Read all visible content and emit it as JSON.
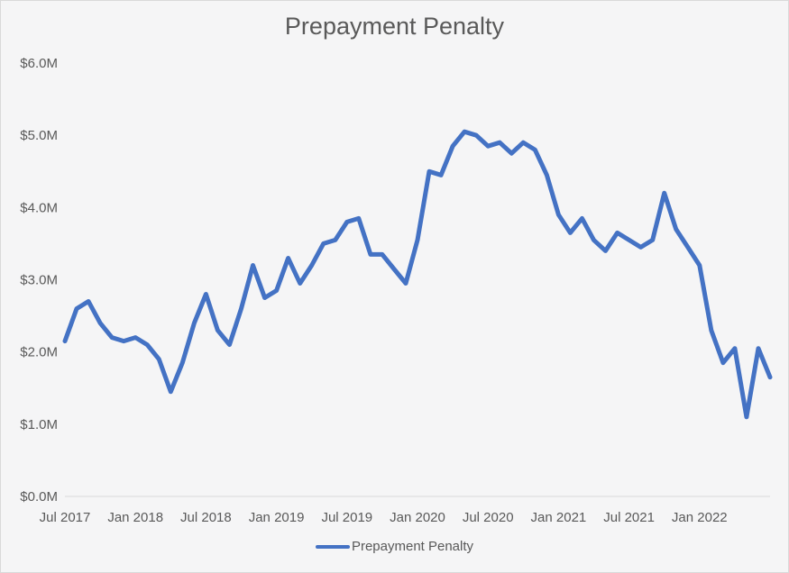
{
  "chart_data": {
    "type": "line",
    "title": "Prepayment Penalty",
    "xlabel": "",
    "ylabel": "",
    "ylim": [
      0,
      6.0
    ],
    "y_ticks": [
      "$0.0M",
      "$1.0M",
      "$2.0M",
      "$3.0M",
      "$4.0M",
      "$5.0M",
      "$6.0M"
    ],
    "x_ticks": [
      "Jul 2017",
      "Jan 2018",
      "Jul 2018",
      "Jan 2019",
      "Jul 2019",
      "Jan 2020",
      "Jul 2020",
      "Jan 2021",
      "Jul 2021",
      "Jan 2022"
    ],
    "grid": false,
    "legend": "bottom",
    "colors": {
      "line": "#4472c4",
      "axis": "#d9d9d9",
      "text": "#595959",
      "background": "#f5f5f6"
    },
    "series": [
      {
        "name": "Prepayment Penalty",
        "x": [
          "2017-07",
          "2017-08",
          "2017-09",
          "2017-10",
          "2017-11",
          "2017-12",
          "2018-01",
          "2018-02",
          "2018-03",
          "2018-04",
          "2018-05",
          "2018-06",
          "2018-07",
          "2018-08",
          "2018-09",
          "2018-10",
          "2018-11",
          "2018-12",
          "2019-01",
          "2019-02",
          "2019-03",
          "2019-04",
          "2019-05",
          "2019-06",
          "2019-07",
          "2019-08",
          "2019-09",
          "2019-10",
          "2019-11",
          "2019-12",
          "2020-01",
          "2020-02",
          "2020-03",
          "2020-04",
          "2020-05",
          "2020-06",
          "2020-07",
          "2020-08",
          "2020-09",
          "2020-10",
          "2020-11",
          "2020-12",
          "2021-01",
          "2021-02",
          "2021-03",
          "2021-04",
          "2021-05",
          "2021-06",
          "2021-07",
          "2021-08",
          "2021-09",
          "2021-10",
          "2021-11",
          "2021-12",
          "2022-01",
          "2022-02",
          "2022-03",
          "2022-04",
          "2022-05",
          "2022-06",
          "2022-07"
        ],
        "values": [
          2.15,
          2.6,
          2.7,
          2.4,
          2.2,
          2.15,
          2.2,
          2.1,
          1.9,
          1.45,
          1.85,
          2.4,
          2.8,
          2.3,
          2.1,
          2.6,
          3.2,
          2.75,
          2.85,
          3.3,
          2.95,
          3.2,
          3.5,
          3.55,
          3.8,
          3.85,
          3.35,
          3.35,
          3.15,
          2.95,
          3.55,
          4.5,
          4.45,
          4.85,
          5.05,
          5.0,
          4.85,
          4.9,
          4.75,
          4.9,
          4.8,
          4.45,
          3.9,
          3.65,
          3.85,
          3.55,
          3.4,
          3.65,
          3.55,
          3.45,
          3.55,
          4.2,
          3.7,
          3.45,
          3.2,
          2.3,
          1.85,
          2.05,
          1.1,
          2.05,
          1.65
        ]
      }
    ]
  }
}
